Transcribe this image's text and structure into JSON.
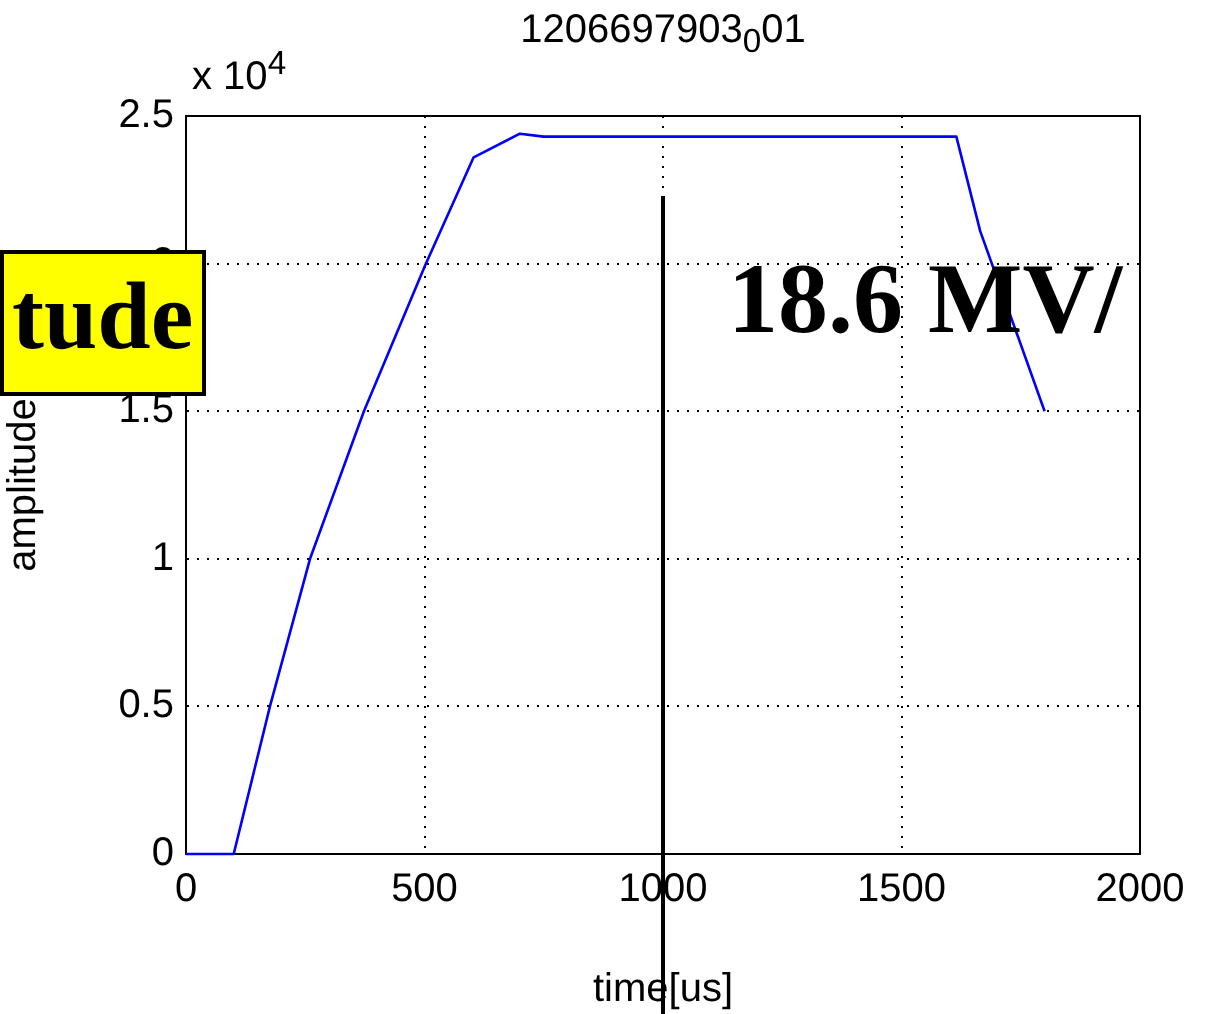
{
  "chart_data": {
    "type": "line",
    "title": "1206697903$_{0}$01",
    "xlabel": "time[us]",
    "ylabel": "amplitude",
    "x": [
      0,
      100,
      176,
      260,
      373,
      503,
      603,
      700,
      750,
      1000,
      1500,
      1615,
      1665,
      1800
    ],
    "series": [
      {
        "color": "#0000ff",
        "values": [
          0,
          0,
          0.5,
          1.0,
          1.5,
          2.0,
          2.36,
          2.44,
          2.43,
          2.43,
          2.43,
          2.43,
          2.11,
          1.5
        ]
      }
    ],
    "xlim": [
      0,
      2000
    ],
    "xticks": [
      0,
      500,
      1000,
      1500,
      2000
    ],
    "ylim": [
      0,
      2.5
    ],
    "yticks": [
      0,
      0.5,
      1,
      1.5,
      2,
      2.5
    ],
    "grid": true,
    "legend": false,
    "marker": "none",
    "line_style": "solid",
    "ref_lines": [
      {
        "axis": "x",
        "value": 1000,
        "color": "#000000"
      }
    ],
    "annotations": [
      "x 10$^{4}$",
      "tude",
      "18.6 MV/"
    ]
  }
}
